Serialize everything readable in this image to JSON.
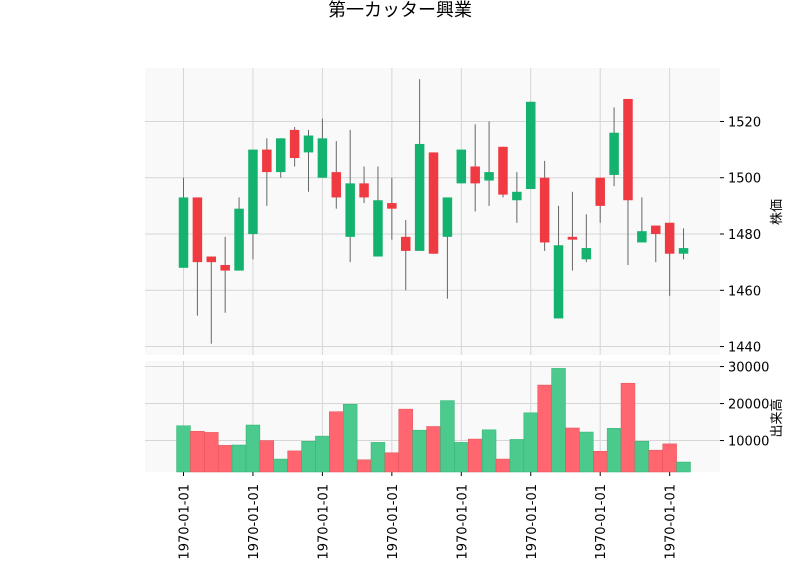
{
  "chart_data": {
    "type": "candlestick",
    "title": "第一カッター興業",
    "ylabel_price": "株価",
    "ylabel_volume": "出来高",
    "price_ylim": [
      1437,
      1539
    ],
    "volume_ylim": [
      1500,
      31500
    ],
    "price_ticks": [
      1440,
      1460,
      1480,
      1500,
      1520
    ],
    "volume_ticks": [
      10000,
      20000,
      30000
    ],
    "x_tick_labels": [
      "1970-01-01",
      "1970-01-01",
      "1970-01-01",
      "1970-01-01",
      "1970-01-01",
      "1970-01-01",
      "1970-01-01",
      "1970-01-01"
    ],
    "x_tick_indices": [
      0,
      5,
      10,
      15,
      20,
      25,
      30,
      35
    ],
    "grid": true,
    "colors": {
      "up": "#13b26f",
      "down": "#f03a42",
      "up_volume": "#4cc98c",
      "down_volume": "#ff6670",
      "wick": "#666666",
      "panel_bg": "#f9f9f9",
      "grid": "#d6d6d6"
    },
    "candles": [
      {
        "open": 1468,
        "high": 1500,
        "low": 1468,
        "close": 1493,
        "volume": 14000
      },
      {
        "open": 1493,
        "high": 1493,
        "low": 1451,
        "close": 1470,
        "volume": 12500
      },
      {
        "open": 1472,
        "high": 1472,
        "low": 1441,
        "close": 1470,
        "volume": 12200
      },
      {
        "open": 1469,
        "high": 1479,
        "low": 1452,
        "close": 1467,
        "volume": 8700
      },
      {
        "open": 1467,
        "high": 1493,
        "low": 1467,
        "close": 1489,
        "volume": 8800
      },
      {
        "open": 1480,
        "high": 1510,
        "low": 1471,
        "close": 1510,
        "volume": 14200
      },
      {
        "open": 1510,
        "high": 1514,
        "low": 1490,
        "close": 1502,
        "volume": 10000
      },
      {
        "open": 1502,
        "high": 1514,
        "low": 1500,
        "close": 1514,
        "volume": 5000
      },
      {
        "open": 1517,
        "high": 1518,
        "low": 1504,
        "close": 1507,
        "volume": 7200
      },
      {
        "open": 1509,
        "high": 1517,
        "low": 1495,
        "close": 1515,
        "volume": 9800
      },
      {
        "open": 1500,
        "high": 1521,
        "low": 1500,
        "close": 1514,
        "volume": 11200
      },
      {
        "open": 1502,
        "high": 1513,
        "low": 1489,
        "close": 1493,
        "volume": 17800
      },
      {
        "open": 1479,
        "high": 1517,
        "low": 1470,
        "close": 1498,
        "volume": 19800
      },
      {
        "open": 1498,
        "high": 1504,
        "low": 1491,
        "close": 1493,
        "volume": 4800
      },
      {
        "open": 1472,
        "high": 1504,
        "low": 1472,
        "close": 1492,
        "volume": 9500
      },
      {
        "open": 1491,
        "high": 1500,
        "low": 1478,
        "close": 1489,
        "volume": 6700
      },
      {
        "open": 1479,
        "high": 1485,
        "low": 1460,
        "close": 1474,
        "volume": 18500
      },
      {
        "open": 1474,
        "high": 1535,
        "low": 1474,
        "close": 1512,
        "volume": 12800
      },
      {
        "open": 1509,
        "high": 1509,
        "low": 1473,
        "close": 1473,
        "volume": 13800
      },
      {
        "open": 1479,
        "high": 1493,
        "low": 1457,
        "close": 1493,
        "volume": 20800
      },
      {
        "open": 1498,
        "high": 1510,
        "low": 1498,
        "close": 1510,
        "volume": 9500
      },
      {
        "open": 1504,
        "high": 1519,
        "low": 1488,
        "close": 1498,
        "volume": 10400
      },
      {
        "open": 1499,
        "high": 1520,
        "low": 1490,
        "close": 1502,
        "volume": 12900
      },
      {
        "open": 1511,
        "high": 1511,
        "low": 1493,
        "close": 1494,
        "volume": 5000
      },
      {
        "open": 1492,
        "high": 1502,
        "low": 1484,
        "close": 1495,
        "volume": 10300
      },
      {
        "open": 1496,
        "high": 1527,
        "low": 1496,
        "close": 1527,
        "volume": 17500
      },
      {
        "open": 1500,
        "high": 1506,
        "low": 1474,
        "close": 1477,
        "volume": 25000
      },
      {
        "open": 1450,
        "high": 1490,
        "low": 1450,
        "close": 1476,
        "volume": 29500
      },
      {
        "open": 1479,
        "high": 1495,
        "low": 1467,
        "close": 1478,
        "volume": 13400
      },
      {
        "open": 1471,
        "high": 1487,
        "low": 1470,
        "close": 1475,
        "volume": 12300
      },
      {
        "open": 1500,
        "high": 1500,
        "low": 1484,
        "close": 1490,
        "volume": 7100
      },
      {
        "open": 1501,
        "high": 1525,
        "low": 1497,
        "close": 1516,
        "volume": 13300
      },
      {
        "open": 1528,
        "high": 1528,
        "low": 1469,
        "close": 1492,
        "volume": 25500
      },
      {
        "open": 1477,
        "high": 1493,
        "low": 1477,
        "close": 1481,
        "volume": 9800
      },
      {
        "open": 1483,
        "high": 1483,
        "low": 1470,
        "close": 1480,
        "volume": 7400
      },
      {
        "open": 1484,
        "high": 1484,
        "low": 1458,
        "close": 1473,
        "volume": 9100
      },
      {
        "open": 1473,
        "high": 1482,
        "low": 1471,
        "close": 1475,
        "volume": 4200
      }
    ]
  }
}
